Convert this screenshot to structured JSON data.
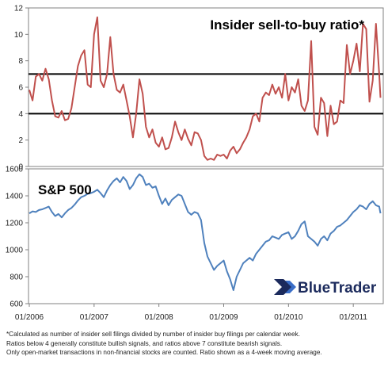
{
  "chart_data": [
    {
      "type": "line",
      "title": "Insider sell-to-buy ratio*",
      "ylim": [
        0,
        12
      ],
      "yticks": [
        "0",
        "2",
        "4",
        "6",
        "8",
        "10",
        "12"
      ],
      "reference_lines": [
        4,
        7
      ],
      "series": [
        {
          "color": "#c0504d",
          "x": [
            2006.0,
            2006.05,
            2006.1,
            2006.15,
            2006.2,
            2006.25,
            2006.3,
            2006.35,
            2006.4,
            2006.45,
            2006.5,
            2006.55,
            2006.6,
            2006.65,
            2006.7,
            2006.75,
            2006.8,
            2006.85,
            2006.9,
            2006.95,
            2007.0,
            2007.05,
            2007.1,
            2007.15,
            2007.2,
            2007.25,
            2007.3,
            2007.35,
            2007.4,
            2007.45,
            2007.5,
            2007.55,
            2007.6,
            2007.65,
            2007.7,
            2007.75,
            2007.8,
            2007.85,
            2007.9,
            2007.95,
            2008.0,
            2008.05,
            2008.1,
            2008.15,
            2008.2,
            2008.25,
            2008.3,
            2008.35,
            2008.4,
            2008.45,
            2008.5,
            2008.55,
            2008.6,
            2008.65,
            2008.7,
            2008.75,
            2008.8,
            2008.85,
            2008.9,
            2008.95,
            2009.0,
            2009.05,
            2009.1,
            2009.15,
            2009.2,
            2009.25,
            2009.3,
            2009.35,
            2009.4,
            2009.45,
            2009.5,
            2009.55,
            2009.6,
            2009.65,
            2009.7,
            2009.75,
            2009.8,
            2009.85,
            2009.9,
            2009.95,
            2010.0,
            2010.05,
            2010.1,
            2010.15,
            2010.2,
            2010.25,
            2010.3,
            2010.35,
            2010.4,
            2010.45,
            2010.5,
            2010.55,
            2010.6,
            2010.65,
            2010.7,
            2010.75,
            2010.8,
            2010.85,
            2010.9,
            2010.95,
            2011.0,
            2011.05,
            2011.1,
            2011.15,
            2011.2,
            2011.25,
            2011.3,
            2011.35,
            2011.4,
            2011.42
          ],
          "y": [
            5.8,
            5.0,
            6.8,
            7.0,
            6.5,
            7.4,
            6.6,
            5.0,
            3.8,
            3.7,
            4.2,
            3.5,
            3.6,
            4.4,
            6.0,
            7.6,
            8.4,
            8.8,
            6.2,
            6.0,
            10.0,
            11.3,
            6.5,
            6.0,
            7.0,
            9.8,
            7.0,
            5.8,
            5.6,
            6.2,
            5.0,
            3.8,
            2.2,
            4.0,
            6.6,
            5.5,
            3.0,
            2.2,
            2.8,
            1.8,
            1.5,
            2.2,
            1.3,
            1.4,
            2.2,
            3.4,
            2.6,
            2.0,
            2.8,
            2.1,
            1.6,
            2.6,
            2.5,
            2.0,
            0.8,
            0.5,
            0.6,
            0.5,
            0.9,
            0.8,
            0.9,
            0.6,
            1.2,
            1.5,
            1.0,
            1.3,
            1.8,
            2.2,
            2.8,
            3.8,
            4.0,
            3.4,
            5.2,
            5.6,
            5.4,
            6.2,
            5.5,
            6.0,
            5.2,
            7.0,
            5.0,
            6.0,
            5.6,
            6.6,
            4.6,
            4.2,
            5.0,
            9.5,
            3.0,
            2.4,
            5.2,
            4.8,
            2.3,
            4.6,
            3.2,
            3.4,
            5.0,
            4.8,
            9.2,
            7.0,
            8.0,
            9.3,
            7.2,
            10.8,
            10.4,
            4.9,
            6.5,
            10.8,
            7.0,
            5.2
          ]
        }
      ]
    },
    {
      "type": "line",
      "title": "S&P 500",
      "ylim": [
        600,
        1600
      ],
      "yticks": [
        "600",
        "800",
        "1000",
        "1200",
        "1400",
        "1600"
      ],
      "xticks": [
        "01/2006",
        "01/2007",
        "01/2008",
        "01/2009",
        "01/2010",
        "01/2011"
      ],
      "series": [
        {
          "color": "#4f81bd",
          "x": [
            2006.0,
            2006.05,
            2006.1,
            2006.15,
            2006.2,
            2006.25,
            2006.3,
            2006.35,
            2006.4,
            2006.45,
            2006.5,
            2006.55,
            2006.6,
            2006.65,
            2006.7,
            2006.75,
            2006.8,
            2006.85,
            2006.9,
            2006.95,
            2007.0,
            2007.05,
            2007.1,
            2007.15,
            2007.2,
            2007.25,
            2007.3,
            2007.35,
            2007.4,
            2007.45,
            2007.5,
            2007.55,
            2007.6,
            2007.65,
            2007.7,
            2007.75,
            2007.8,
            2007.85,
            2007.9,
            2007.95,
            2008.0,
            2008.05,
            2008.1,
            2008.15,
            2008.2,
            2008.25,
            2008.3,
            2008.35,
            2008.4,
            2008.45,
            2008.5,
            2008.55,
            2008.6,
            2008.65,
            2008.7,
            2008.75,
            2008.8,
            2008.85,
            2008.9,
            2008.95,
            2009.0,
            2009.05,
            2009.1,
            2009.15,
            2009.2,
            2009.25,
            2009.3,
            2009.35,
            2009.4,
            2009.45,
            2009.5,
            2009.55,
            2009.6,
            2009.65,
            2009.7,
            2009.75,
            2009.8,
            2009.85,
            2009.9,
            2009.95,
            2010.0,
            2010.05,
            2010.1,
            2010.15,
            2010.2,
            2010.25,
            2010.3,
            2010.35,
            2010.4,
            2010.45,
            2010.5,
            2010.55,
            2010.6,
            2010.65,
            2010.7,
            2010.75,
            2010.8,
            2010.85,
            2010.9,
            2010.95,
            2011.0,
            2011.05,
            2011.1,
            2011.15,
            2011.2,
            2011.25,
            2011.3,
            2011.35,
            2011.4,
            2011.42
          ],
          "y": [
            1270,
            1285,
            1280,
            1295,
            1300,
            1310,
            1320,
            1280,
            1250,
            1265,
            1240,
            1270,
            1295,
            1310,
            1335,
            1365,
            1390,
            1400,
            1415,
            1420,
            1430,
            1445,
            1420,
            1390,
            1440,
            1480,
            1510,
            1530,
            1500,
            1540,
            1510,
            1450,
            1480,
            1530,
            1560,
            1540,
            1480,
            1490,
            1460,
            1470,
            1400,
            1340,
            1380,
            1330,
            1370,
            1390,
            1410,
            1400,
            1340,
            1280,
            1260,
            1280,
            1270,
            1220,
            1050,
            950,
            900,
            850,
            880,
            900,
            920,
            840,
            780,
            700,
            800,
            850,
            900,
            920,
            940,
            920,
            970,
            1000,
            1030,
            1060,
            1070,
            1100,
            1090,
            1080,
            1110,
            1120,
            1130,
            1080,
            1100,
            1140,
            1190,
            1210,
            1100,
            1080,
            1060,
            1030,
            1080,
            1100,
            1070,
            1120,
            1140,
            1170,
            1180,
            1200,
            1220,
            1250,
            1280,
            1300,
            1330,
            1320,
            1300,
            1340,
            1360,
            1330,
            1320,
            1270
          ]
        }
      ]
    }
  ],
  "annotations": {
    "watermark": "BlueTrader",
    "footnotes": [
      "*Calculated as number of insider sell filings divided by number of insider buy filings per calendar week.",
      "Ratios below 4 generally constitute bullish signals, and ratios above 7 constitute bearish signals.",
      "Only open-market transactions in non-financial stocks are counted.  Ratio shown as a 4-week moving average."
    ]
  }
}
